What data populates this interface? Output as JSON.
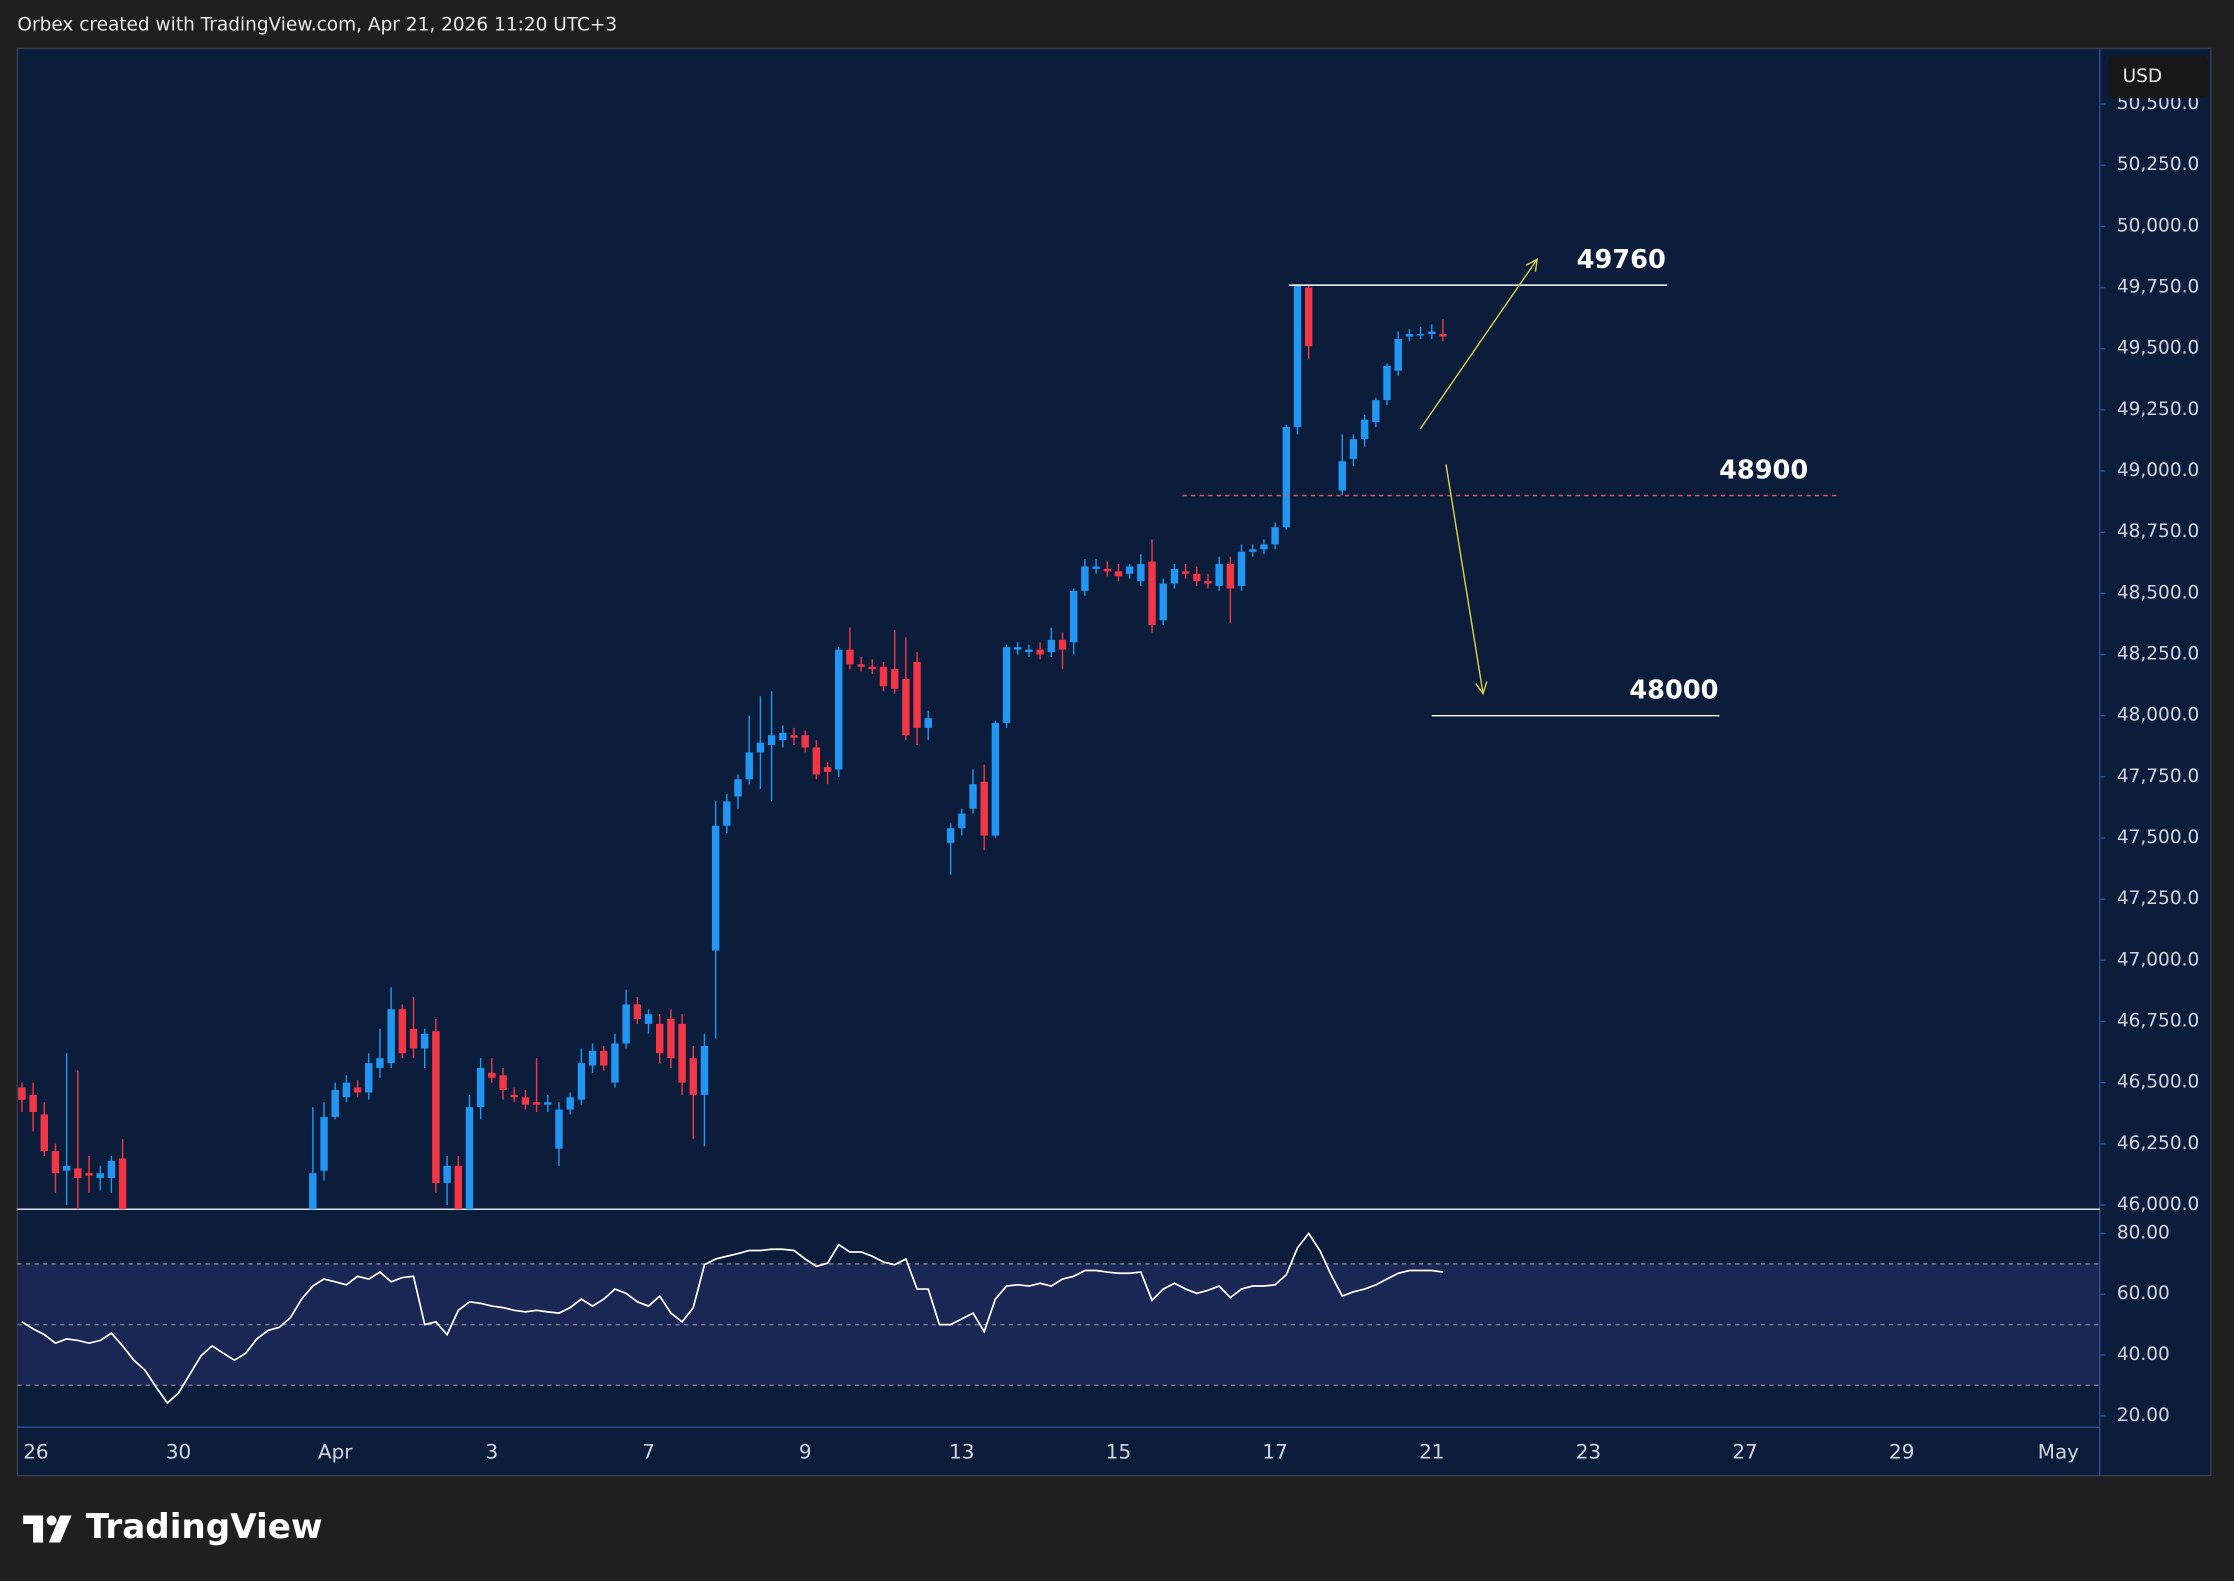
{
  "header": "Orbex created with TradingView.com, Apr 21, 2026 11:20 UTC+3",
  "brand": "TradingView",
  "currency": "USD",
  "chart_data": [
    {
      "type": "candlestick",
      "x": [
        0,
        1,
        2,
        3,
        4,
        5,
        6,
        7,
        8,
        9,
        26,
        27,
        28,
        29,
        30,
        31,
        32,
        33,
        34,
        35,
        36,
        37,
        38,
        39,
        40,
        41,
        42,
        43,
        44,
        45,
        46,
        47,
        48,
        49,
        50,
        51,
        52,
        53,
        54,
        55,
        56,
        57,
        58,
        59,
        60,
        61,
        62,
        63,
        64,
        65,
        66,
        67,
        68,
        69,
        70,
        71,
        72,
        73,
        74,
        75,
        76,
        77,
        78,
        79,
        80,
        81,
        83,
        84,
        85,
        86,
        87,
        88,
        89,
        90,
        91,
        92,
        93,
        94,
        95,
        96,
        97,
        98,
        99,
        100,
        101,
        102,
        103,
        104,
        105,
        106,
        107,
        108,
        109,
        110,
        111,
        112,
        113,
        114,
        115,
        118,
        119,
        120,
        121,
        122,
        123,
        124,
        125,
        126,
        127
      ],
      "ohlc": [
        [
          46480,
          46500,
          46380,
          46430
        ],
        [
          46450,
          46500,
          46300,
          46380
        ],
        [
          46370,
          46420,
          46200,
          46220
        ],
        [
          46220,
          46250,
          46050,
          46130
        ],
        [
          46140,
          46620,
          46000,
          46160
        ],
        [
          46150,
          46550,
          45950,
          46110
        ],
        [
          46130,
          46200,
          46050,
          46120
        ],
        [
          46110,
          46160,
          46060,
          46130
        ],
        [
          46110,
          46200,
          46050,
          46180
        ],
        [
          46190,
          46270,
          45900,
          45980
        ],
        [
          45900,
          46400,
          45800,
          46130
        ],
        [
          46140,
          46420,
          46100,
          46360
        ],
        [
          46360,
          46500,
          46350,
          46470
        ],
        [
          46440,
          46530,
          46420,
          46500
        ],
        [
          46480,
          46510,
          46440,
          46460
        ],
        [
          46460,
          46620,
          46430,
          46580
        ],
        [
          46560,
          46720,
          46520,
          46600
        ],
        [
          46580,
          46890,
          46560,
          46800
        ],
        [
          46800,
          46820,
          46600,
          46620
        ],
        [
          46720,
          46850,
          46600,
          46640
        ],
        [
          46640,
          46720,
          46560,
          46700
        ],
        [
          46710,
          46760,
          46050,
          46090
        ],
        [
          46090,
          46200,
          46000,
          46160
        ],
        [
          46160,
          46200,
          45900,
          45980
        ],
        [
          45950,
          46450,
          45900,
          46400
        ],
        [
          46400,
          46600,
          46350,
          46560
        ],
        [
          46540,
          46600,
          46500,
          46520
        ],
        [
          46530,
          46560,
          46430,
          46470
        ],
        [
          46450,
          46480,
          46420,
          46440
        ],
        [
          46440,
          46470,
          46390,
          46410
        ],
        [
          46420,
          46600,
          46380,
          46410
        ],
        [
          46410,
          46450,
          46380,
          46420
        ],
        [
          46230,
          46420,
          46160,
          46390
        ],
        [
          46390,
          46460,
          46370,
          46440
        ],
        [
          46430,
          46640,
          46410,
          46580
        ],
        [
          46570,
          46660,
          46540,
          46630
        ],
        [
          46630,
          46650,
          46550,
          46570
        ],
        [
          46500,
          46700,
          46480,
          46660
        ],
        [
          46660,
          46880,
          46640,
          46820
        ],
        [
          46820,
          46850,
          46740,
          46760
        ],
        [
          46740,
          46800,
          46700,
          46780
        ],
        [
          46740,
          46780,
          46580,
          46620
        ],
        [
          46760,
          46800,
          46560,
          46600
        ],
        [
          46740,
          46780,
          46450,
          46500
        ],
        [
          46600,
          46650,
          46270,
          46450
        ],
        [
          46450,
          46700,
          46240,
          46650
        ],
        [
          47040,
          47650,
          46680,
          47550
        ],
        [
          47550,
          47680,
          47520,
          47650
        ],
        [
          47670,
          47760,
          47620,
          47740
        ],
        [
          47740,
          48000,
          47720,
          47850
        ],
        [
          47850,
          48080,
          47700,
          47890
        ],
        [
          47880,
          48100,
          47650,
          47920
        ],
        [
          47900,
          47960,
          47870,
          47930
        ],
        [
          47920,
          47950,
          47880,
          47910
        ],
        [
          47920,
          47940,
          47850,
          47870
        ],
        [
          47870,
          47900,
          47740,
          47760
        ],
        [
          47790,
          47810,
          47720,
          47770
        ],
        [
          47780,
          48280,
          47750,
          48270
        ],
        [
          48270,
          48360,
          48190,
          48210
        ],
        [
          48210,
          48240,
          48180,
          48200
        ],
        [
          48200,
          48230,
          48170,
          48190
        ],
        [
          48200,
          48220,
          48100,
          48120
        ],
        [
          48190,
          48350,
          48090,
          48110
        ],
        [
          48150,
          48320,
          47900,
          47920
        ],
        [
          48220,
          48260,
          47880,
          47950
        ],
        [
          47950,
          48020,
          47900,
          47990
        ],
        [
          47480,
          47560,
          47350,
          47540
        ],
        [
          47540,
          47620,
          47510,
          47600
        ],
        [
          47620,
          47780,
          47600,
          47720
        ],
        [
          47730,
          47800,
          47450,
          47510
        ],
        [
          47510,
          47980,
          47500,
          47970
        ],
        [
          47970,
          48290,
          47950,
          48280
        ],
        [
          48270,
          48300,
          48250,
          48280
        ],
        [
          48260,
          48290,
          48240,
          48270
        ],
        [
          48270,
          48300,
          48230,
          48250
        ],
        [
          48260,
          48360,
          48240,
          48310
        ],
        [
          48310,
          48340,
          48190,
          48270
        ],
        [
          48300,
          48520,
          48250,
          48510
        ],
        [
          48510,
          48640,
          48490,
          48610
        ],
        [
          48600,
          48640,
          48580,
          48610
        ],
        [
          48600,
          48630,
          48570,
          48590
        ],
        [
          48590,
          48620,
          48550,
          48570
        ],
        [
          48580,
          48620,
          48560,
          48610
        ],
        [
          48550,
          48660,
          48530,
          48620
        ],
        [
          48630,
          48720,
          48340,
          48370
        ],
        [
          48390,
          48560,
          48370,
          48540
        ],
        [
          48540,
          48620,
          48520,
          48600
        ],
        [
          48590,
          48620,
          48560,
          48580
        ],
        [
          48580,
          48610,
          48530,
          48550
        ],
        [
          48550,
          48580,
          48520,
          48540
        ],
        [
          48530,
          48650,
          48510,
          48620
        ],
        [
          48620,
          48650,
          48380,
          48520
        ],
        [
          48530,
          48700,
          48510,
          48670
        ],
        [
          48670,
          48700,
          48650,
          48680
        ],
        [
          48680,
          48720,
          48660,
          48700
        ],
        [
          48700,
          48790,
          48680,
          48770
        ],
        [
          48770,
          49190,
          48760,
          49180
        ],
        [
          49180,
          49760,
          49150,
          49760
        ],
        [
          49750,
          49760,
          49460,
          49510
        ],
        [
          48920,
          49150,
          48900,
          49040
        ],
        [
          49050,
          49150,
          49020,
          49130
        ],
        [
          49130,
          49230,
          49100,
          49210
        ],
        [
          49200,
          49300,
          49180,
          49290
        ],
        [
          49290,
          49440,
          49270,
          49430
        ],
        [
          49410,
          49570,
          49390,
          49540
        ],
        [
          49550,
          49580,
          49530,
          49560
        ],
        [
          49560,
          49590,
          49540,
          49560
        ],
        [
          49560,
          49600,
          49540,
          49570
        ],
        [
          49560,
          49620,
          49530,
          49550
        ]
      ],
      "up_color": "#2196f3",
      "down_color": "#f23645",
      "xlim": [
        -0.4,
        185.7
      ],
      "xticks": [
        {
          "value": 0,
          "label": "26"
        },
        {
          "value": 14,
          "label": "30"
        },
        {
          "value": 28,
          "label": "Apr"
        },
        {
          "value": 42,
          "label": "3"
        },
        {
          "value": 56,
          "label": "7"
        },
        {
          "value": 70,
          "label": "9"
        },
        {
          "value": 84,
          "label": "13"
        },
        {
          "value": 98,
          "label": "15"
        },
        {
          "value": 112,
          "label": "17"
        },
        {
          "value": 126,
          "label": "21"
        },
        {
          "value": 140,
          "label": "23"
        },
        {
          "value": 154,
          "label": "27"
        },
        {
          "value": 168,
          "label": "29"
        },
        {
          "value": 182,
          "label": "May"
        }
      ],
      "ylim": [
        45982.5,
        50721.6
      ],
      "yticks": [
        {
          "value": 46000,
          "label": "46,000.0"
        },
        {
          "value": 46250,
          "label": "46,250.0"
        },
        {
          "value": 46500,
          "label": "46,500.0"
        },
        {
          "value": 46750,
          "label": "46,750.0"
        },
        {
          "value": 47000,
          "label": "47,000.0"
        },
        {
          "value": 47250,
          "label": "47,250.0"
        },
        {
          "value": 47500,
          "label": "47,500.0"
        },
        {
          "value": 47750,
          "label": "47,750.0"
        },
        {
          "value": 48000,
          "label": "48,000.0"
        },
        {
          "value": 48250,
          "label": "48,250.0"
        },
        {
          "value": 48500,
          "label": "48,500.0"
        },
        {
          "value": 48750,
          "label": "48,750.0"
        },
        {
          "value": 49000,
          "label": "49,000.0"
        },
        {
          "value": 49250,
          "label": "49,250.0"
        },
        {
          "value": 49500,
          "label": "49,500.0"
        },
        {
          "value": 49750,
          "label": "49,750.0"
        },
        {
          "value": 50000,
          "label": "50,000.0"
        },
        {
          "value": 50250,
          "label": "50,250.0"
        },
        {
          "value": 50500,
          "label": "50,500.0"
        }
      ],
      "grid": false,
      "annotations": [
        {
          "text": "49760",
          "value": 49760,
          "color": "#ffffff",
          "dashed": false
        },
        {
          "text": "48900",
          "value": 48900,
          "color": "#e0505a",
          "dashed": true
        },
        {
          "text": "48000",
          "value": 48000,
          "color": "#ffffff",
          "dashed": false
        }
      ]
    },
    {
      "type": "line",
      "x": [
        0,
        1,
        2,
        3,
        4,
        5,
        6,
        7,
        8,
        9,
        10,
        11,
        12,
        13,
        14,
        15,
        16,
        17,
        18,
        19,
        20,
        21,
        22,
        23,
        24,
        25,
        26,
        27,
        28,
        29,
        30,
        31,
        32,
        33,
        34,
        35,
        36,
        37,
        38,
        39,
        40,
        41,
        42,
        43,
        44,
        45,
        46,
        47,
        48,
        49,
        50,
        51,
        52,
        53,
        54,
        55,
        56,
        57,
        58,
        59,
        60,
        61,
        62,
        63,
        64,
        65,
        66,
        67,
        68,
        69,
        70,
        71,
        72,
        73,
        74,
        75,
        76,
        77,
        78,
        79,
        80,
        81,
        82,
        83,
        84,
        85,
        86,
        87,
        88,
        89,
        90,
        91,
        92,
        93,
        94,
        95,
        96,
        97,
        98,
        99,
        100,
        101,
        102,
        103,
        104,
        105,
        106,
        107,
        108,
        109,
        110,
        111,
        112,
        113,
        114,
        115,
        116,
        117,
        118,
        119,
        120,
        121,
        122,
        123,
        124,
        125,
        126,
        127
      ],
      "values": [
        50.9,
        48.6,
        46.7,
        43.9,
        45.3,
        44.8,
        43.9,
        44.8,
        47.2,
        43.0,
        38.3,
        35.0,
        29.4,
        24.2,
        27.5,
        33.6,
        39.7,
        43.0,
        40.6,
        38.3,
        40.6,
        45.3,
        48.1,
        49.1,
        52.3,
        58.4,
        62.7,
        65.0,
        64.1,
        63.1,
        65.9,
        65.0,
        67.3,
        64.1,
        65.5,
        65.9,
        50.0,
        50.9,
        46.7,
        54.7,
        57.5,
        57.0,
        56.1,
        55.6,
        54.7,
        54.2,
        54.7,
        54.2,
        53.8,
        55.6,
        58.4,
        56.1,
        58.4,
        61.7,
        60.3,
        57.5,
        56.1,
        59.4,
        53.8,
        50.9,
        55.6,
        69.7,
        71.6,
        72.5,
        73.4,
        74.4,
        74.4,
        74.8,
        74.8,
        74.4,
        71.6,
        69.2,
        70.2,
        76.3,
        73.9,
        73.9,
        72.5,
        70.6,
        69.7,
        71.6,
        61.7,
        61.7,
        50.0,
        50.0,
        51.9,
        53.8,
        47.7,
        58.4,
        62.7,
        63.1,
        62.7,
        63.6,
        62.7,
        65.0,
        65.9,
        67.8,
        67.8,
        67.3,
        66.9,
        66.9,
        67.3,
        58.0,
        61.7,
        63.6,
        61.7,
        60.3,
        61.3,
        62.7,
        58.9,
        61.7,
        62.7,
        62.7,
        63.1,
        66.4,
        75.3,
        80.0,
        74.4,
        66.4,
        59.4,
        60.8,
        61.7,
        63.1,
        65.0,
        66.9,
        67.8,
        67.8,
        67.8,
        67.3
      ],
      "color": "#ffffff",
      "xlim": [
        -0.4,
        185.7
      ],
      "ylim": [
        16.25,
        87.97
      ],
      "yticks": [
        {
          "value": 20,
          "label": "20.00"
        },
        {
          "value": 40,
          "label": "40.00"
        },
        {
          "value": 60,
          "label": "60.00"
        },
        {
          "value": 80,
          "label": "80.00"
        }
      ],
      "band": [
        30,
        70
      ],
      "midline": 50,
      "band_color": "#1a2654"
    }
  ]
}
